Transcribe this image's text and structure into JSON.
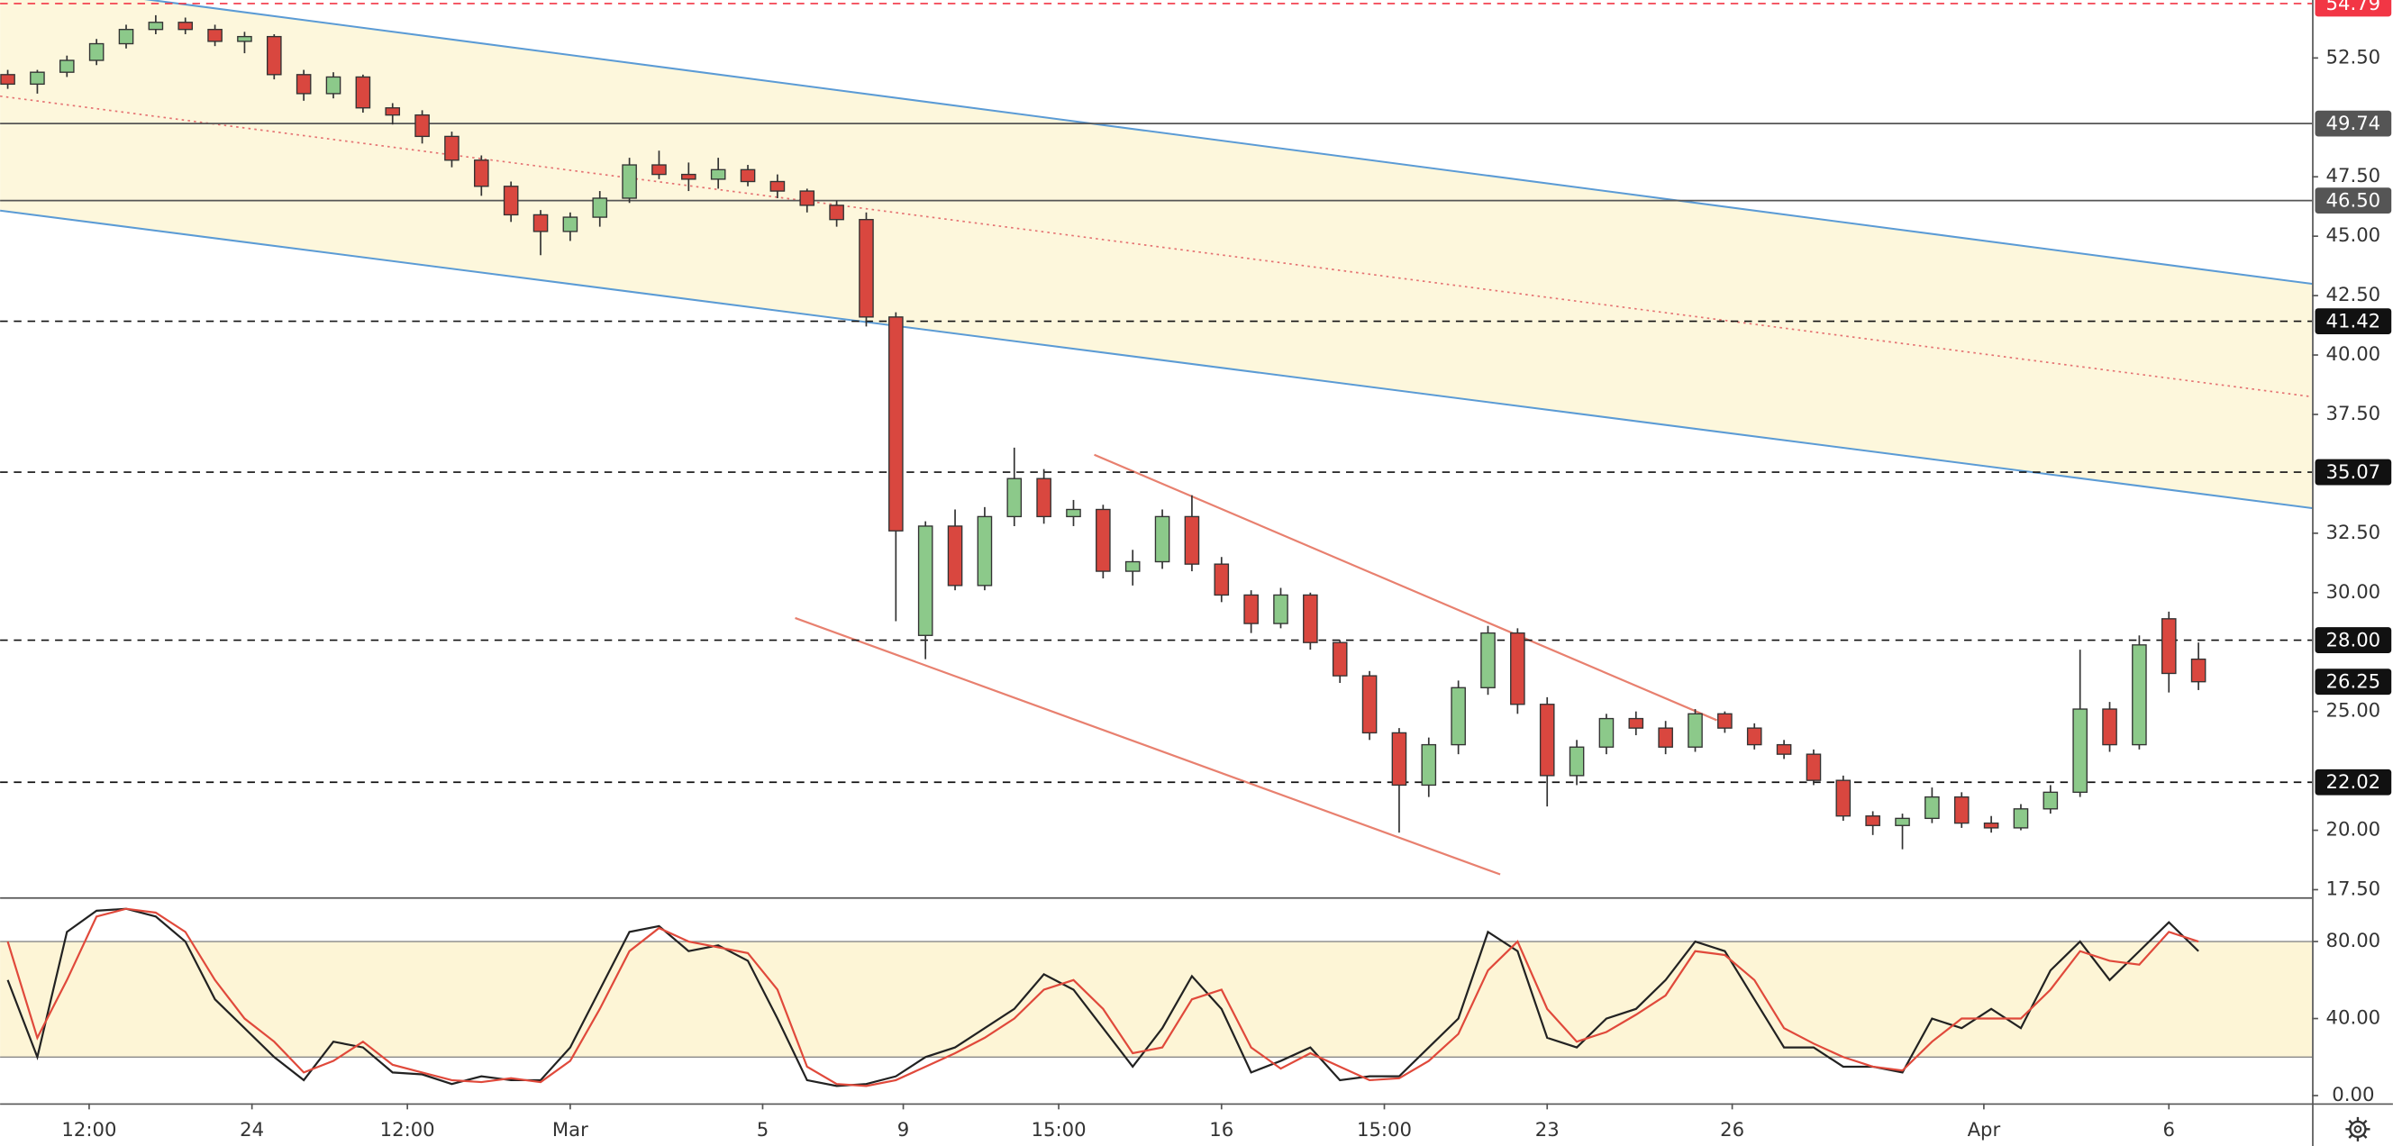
{
  "chart_data": [
    {
      "type": "candlestick",
      "categories": [
        null,
        null,
        null,
        null,
        null,
        null,
        null,
        null,
        null,
        null,
        null,
        null,
        null,
        null,
        null,
        null,
        null,
        null,
        null,
        null,
        null,
        null,
        null,
        null,
        null,
        null,
        null,
        null,
        null,
        null,
        null,
        null,
        null,
        null,
        null,
        null,
        null,
        null,
        null,
        null,
        null,
        null,
        null,
        null,
        null,
        null,
        null,
        null,
        null,
        null,
        null,
        null,
        null,
        null,
        null,
        null,
        null,
        null,
        null,
        null,
        null,
        null,
        null,
        null,
        null,
        null,
        null,
        null,
        null,
        null,
        null,
        null,
        null,
        null,
        null
      ],
      "open": [
        51.8,
        51.4,
        51.9,
        52.4,
        53.1,
        53.7,
        54.0,
        53.7,
        53.2,
        53.4,
        51.8,
        51.0,
        51.7,
        50.4,
        50.1,
        49.2,
        48.2,
        47.1,
        45.9,
        45.2,
        45.8,
        46.6,
        48.0,
        47.6,
        47.4,
        47.8,
        47.3,
        46.9,
        46.3,
        45.7,
        41.6,
        28.2,
        32.8,
        30.3,
        33.2,
        34.8,
        33.2,
        33.5,
        30.9,
        31.3,
        33.2,
        31.2,
        29.9,
        28.7,
        29.9,
        27.9,
        26.5,
        24.1,
        21.9,
        23.6,
        26.0,
        28.3,
        25.3,
        22.3,
        23.5,
        24.7,
        24.3,
        23.5,
        24.9,
        24.3,
        23.6,
        23.2,
        22.1,
        20.6,
        20.2,
        20.5,
        21.4,
        20.3,
        20.1,
        20.9,
        21.6,
        25.1,
        23.6,
        28.9,
        27.2
      ],
      "high": [
        52.0,
        52.0,
        52.6,
        53.3,
        53.9,
        54.3,
        54.2,
        53.9,
        53.6,
        53.5,
        52.0,
        51.9,
        51.8,
        50.6,
        50.3,
        49.4,
        48.4,
        47.3,
        46.1,
        46.0,
        46.9,
        48.3,
        48.6,
        48.1,
        48.3,
        48.0,
        47.6,
        47.0,
        46.5,
        46.0,
        41.8,
        33.0,
        33.5,
        33.6,
        36.1,
        35.2,
        33.9,
        33.7,
        31.8,
        33.5,
        34.1,
        31.5,
        30.1,
        30.2,
        30.0,
        28.0,
        26.7,
        24.3,
        23.9,
        26.3,
        28.6,
        28.5,
        25.6,
        23.8,
        24.9,
        25.0,
        24.6,
        25.1,
        25.0,
        24.5,
        23.8,
        23.4,
        22.3,
        20.8,
        20.7,
        21.8,
        21.6,
        20.6,
        21.1,
        21.9,
        27.6,
        25.4,
        28.2,
        29.2,
        27.9
      ],
      "low": [
        51.2,
        51.0,
        51.7,
        52.2,
        52.9,
        53.5,
        53.5,
        53.0,
        52.7,
        51.6,
        50.7,
        50.8,
        50.2,
        49.7,
        48.9,
        47.9,
        46.7,
        45.6,
        44.2,
        44.8,
        45.4,
        46.4,
        47.4,
        46.9,
        47.0,
        47.1,
        46.6,
        46.0,
        45.4,
        41.2,
        28.8,
        27.2,
        30.1,
        30.1,
        32.8,
        32.9,
        32.8,
        30.6,
        30.3,
        31.0,
        30.9,
        29.6,
        28.3,
        28.5,
        27.6,
        26.2,
        23.8,
        19.9,
        21.4,
        23.2,
        25.7,
        24.9,
        21.0,
        21.9,
        23.2,
        24.0,
        23.2,
        23.3,
        24.1,
        23.4,
        23.0,
        21.9,
        20.4,
        19.8,
        19.2,
        20.3,
        20.1,
        19.9,
        20.0,
        20.7,
        21.4,
        23.3,
        23.4,
        25.8,
        25.9
      ],
      "close": [
        51.4,
        51.9,
        52.4,
        53.1,
        53.7,
        54.0,
        53.7,
        53.2,
        53.4,
        51.8,
        51.0,
        51.7,
        50.4,
        50.1,
        49.2,
        48.2,
        47.1,
        45.9,
        45.2,
        45.8,
        46.6,
        48.0,
        47.6,
        47.4,
        47.8,
        47.3,
        46.9,
        46.3,
        45.7,
        41.6,
        32.6,
        32.8,
        30.3,
        33.2,
        34.8,
        33.2,
        33.5,
        30.9,
        31.3,
        33.2,
        31.2,
        29.9,
        28.7,
        29.9,
        27.9,
        26.5,
        24.1,
        21.9,
        23.6,
        26.0,
        28.3,
        25.3,
        22.3,
        23.5,
        24.7,
        24.3,
        23.5,
        24.9,
        24.3,
        23.6,
        23.2,
        22.1,
        20.6,
        20.2,
        20.5,
        21.4,
        20.3,
        20.1,
        20.9,
        21.6,
        25.1,
        23.6,
        27.8,
        26.6,
        26.25
      ],
      "up_color": "#8cc98a",
      "down_color": "#d9473f",
      "ylim": [
        17.18,
        54.94
      ],
      "yticks": [
        {
          "value": 52.5,
          "label": "52.50"
        },
        {
          "value": 47.5,
          "label": "47.50"
        },
        {
          "value": 45,
          "label": "45.00"
        },
        {
          "value": 42.5,
          "label": "42.50"
        },
        {
          "value": 40,
          "label": "40.00"
        },
        {
          "value": 37.5,
          "label": "37.50"
        },
        {
          "value": 32.5,
          "label": "32.50"
        },
        {
          "value": 30,
          "label": "30.00"
        },
        {
          "value": 25,
          "label": "25.00"
        },
        {
          "value": 20,
          "label": "20.00"
        },
        {
          "value": 17.5,
          "label": "17.50"
        }
      ],
      "levels": [
        {
          "value": 54.79,
          "color": "#f23645",
          "style": "dashed"
        },
        {
          "value": 49.74,
          "color": "#555555",
          "style": "solid"
        },
        {
          "value": 46.5,
          "label": "46.50",
          "color": "#555555",
          "style": "solid"
        },
        {
          "value": 41.42,
          "color": "#111111",
          "style": "dashed"
        },
        {
          "value": 35.07,
          "color": "#111111",
          "style": "dashed"
        },
        {
          "value": 28,
          "label": "28.00",
          "color": "#111111",
          "style": "dashed"
        },
        {
          "value": 26.25,
          "color": "#111111",
          "style": "none"
        },
        {
          "value": 22.02,
          "color": "#111111",
          "style": "dashed"
        }
      ],
      "xticks": [
        {
          "value": 2.75,
          "label": "12:00"
        },
        {
          "value": 8.25,
          "label": "24"
        },
        {
          "value": 13.5,
          "label": "12:00"
        },
        {
          "value": 19,
          "label": "Mar"
        },
        {
          "value": 25.5,
          "label": "5"
        },
        {
          "value": 30.25,
          "label": "9"
        },
        {
          "value": 35.5,
          "label": "15:00"
        },
        {
          "value": 41,
          "label": "16"
        },
        {
          "value": 46.5,
          "label": "15:00"
        },
        {
          "value": 52,
          "label": "23"
        },
        {
          "value": 58.25,
          "label": "26"
        },
        {
          "value": 66.75,
          "label": "Apr"
        },
        {
          "value": 73,
          "label": "6"
        }
      ]
    },
    {
      "type": "line",
      "series": [
        {
          "color": "#222222",
          "values": [
            60,
            20,
            85,
            96,
            97,
            93,
            80,
            50,
            35,
            20,
            8,
            28,
            25,
            12,
            11,
            6,
            10,
            8,
            8,
            25,
            55,
            85,
            88,
            75,
            78,
            70,
            40,
            8,
            5,
            6,
            10,
            20,
            25,
            35,
            45,
            63,
            55,
            35,
            15,
            35,
            62,
            45,
            12,
            18,
            25,
            8,
            10,
            10,
            25,
            40,
            85,
            75,
            30,
            25,
            40,
            45,
            60,
            80,
            75,
            50,
            25,
            25,
            15,
            15,
            12,
            40,
            35,
            45,
            35,
            65,
            80,
            60,
            75,
            90,
            75
          ]
        },
        {
          "color": "#e0493b",
          "values": [
            80,
            30,
            60,
            93,
            97,
            95,
            85,
            60,
            40,
            28,
            12,
            18,
            28,
            16,
            12,
            8,
            7,
            9,
            7,
            18,
            45,
            75,
            87,
            80,
            77,
            74,
            55,
            15,
            6,
            5,
            8,
            15,
            22,
            30,
            40,
            55,
            60,
            45,
            22,
            25,
            50,
            55,
            25,
            14,
            22,
            15,
            8,
            9,
            18,
            32,
            65,
            80,
            45,
            28,
            33,
            42,
            52,
            75,
            73,
            60,
            35,
            27,
            20,
            15,
            13,
            28,
            40,
            40,
            40,
            55,
            75,
            70,
            68,
            85,
            80
          ]
        }
      ],
      "band": [
        20,
        80
      ],
      "band_color": "#fdf5d6",
      "ylim": [
        -4,
        101.4
      ],
      "yticks": [
        {
          "value": 80,
          "label": "80.00"
        },
        {
          "value": 40,
          "label": "40.00"
        },
        {
          "value": 0,
          "label": "0.00"
        }
      ]
    }
  ]
}
